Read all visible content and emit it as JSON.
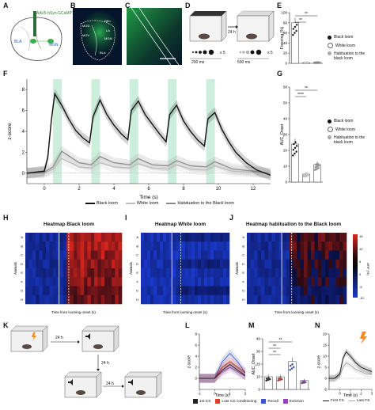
{
  "panels": {
    "A": {
      "letter": "A",
      "virus": "AAV5-hSyn-GCaMP7s",
      "region1": "BLA",
      "region2": "MGN"
    },
    "B": {
      "letter": "B",
      "labels": [
        "BLA",
        "DEn",
        "LA",
        "MGV",
        "MGD",
        "MGM"
      ]
    },
    "C": {
      "letter": "C"
    },
    "D": {
      "letter": "D",
      "interval": "24 h",
      "reps1": "x 5",
      "reps2": "x 5",
      "dist1": "200 ms",
      "dist2": "500 ms"
    },
    "E": {
      "letter": "E",
      "sig": "**"
    },
    "F": {
      "letter": "F"
    },
    "G": {
      "letter": "G",
      "sig1": "**",
      "sig2": "****"
    },
    "H": {
      "letter": "H",
      "title": "Heatmap Black loom"
    },
    "I": {
      "letter": "I",
      "title": "Heatmap White loom"
    },
    "J": {
      "letter": "J",
      "title": "Heatmap habituation to the Black loom"
    },
    "K": {
      "letter": "K",
      "interval1": "24 h",
      "interval2": "24 h",
      "interval3": "24 h"
    },
    "L": {
      "letter": "L"
    },
    "M": {
      "letter": "M",
      "sig": "**"
    },
    "N": {
      "letter": "N"
    }
  },
  "heatmaps": {
    "ylabel": "Animals",
    "xlabel": "Time from looming onset (s)",
    "rows": [
      "A",
      "B",
      "C",
      "D",
      "E",
      "F",
      "G",
      "H"
    ],
    "colorbar_label": "dF/F (%)",
    "colorbar_ticks": [
      "15",
      "10",
      "5",
      "0",
      "-5",
      "-10"
    ]
  },
  "legends": {
    "E": [
      "Black loom",
      "White loom",
      "Habituation to the black loom"
    ],
    "G": [
      "Black loom",
      "White loom",
      "Habituation to the black loom"
    ],
    "F": [
      "Black loom",
      "White loom",
      "Habituation to the Black loom"
    ],
    "L": [
      "1st CS",
      "Last CS conditioning",
      "Recall",
      "Extiction"
    ],
    "N": [
      "First FS",
      "Last FS"
    ]
  },
  "colors": {
    "black": "#111111",
    "white_loom": "#bdbdbd",
    "habituation": "#8a8a8a",
    "shade": "#cdeedd",
    "heat_high": "#e0261e",
    "heat_low": "#1a3cc9",
    "cs1": "#222222",
    "cs_last": "#e4392b",
    "recall": "#3a55d0",
    "extinction": "#9b3fc6",
    "fs_first": "#111111",
    "fs_last": "#a0a0a0",
    "lightning": "#f28c1a"
  },
  "chart_data": [
    {
      "type": "bar",
      "id": "E",
      "ylabel": "Freezing (%)",
      "categories": [
        "Black loom",
        "White loom",
        "Habituation to the black loom"
      ],
      "values": [
        80,
        1,
        2
      ],
      "ylim": [
        0,
        100
      ],
      "yticks": [
        0,
        20,
        40,
        60,
        80,
        100
      ],
      "significance": [
        "**",
        "**"
      ]
    },
    {
      "type": "line",
      "id": "F",
      "xlabel": "Time (s)",
      "ylabel": "z-score",
      "xlim": [
        -1,
        13
      ],
      "ylim": [
        -1,
        9
      ],
      "xticks": [
        0,
        2,
        4,
        6,
        8,
        10,
        12
      ],
      "yticks": [
        0,
        2,
        4,
        6,
        8
      ],
      "loom_onsets": [
        0.5,
        2.7,
        4.9,
        7.1,
        9.3
      ],
      "series": [
        {
          "name": "Black loom",
          "color": "#111111",
          "x": [
            -1,
            -0.5,
            0,
            0.2,
            0.4,
            0.6,
            1.0,
            1.4,
            1.8,
            2.2,
            2.6,
            2.8,
            3.2,
            3.6,
            4.0,
            4.4,
            4.8,
            5.0,
            5.4,
            5.8,
            6.2,
            6.6,
            7.0,
            7.2,
            7.6,
            8.0,
            8.4,
            8.8,
            9.2,
            9.4,
            9.8,
            10.2,
            10.6,
            11.0,
            11.6,
            12.2,
            13
          ],
          "y": [
            0,
            0.1,
            0.2,
            1.5,
            5.0,
            7.6,
            6.5,
            5.2,
            4.1,
            3.4,
            2.9,
            5.4,
            7.0,
            5.6,
            4.6,
            3.8,
            3.2,
            6.0,
            6.9,
            5.6,
            4.7,
            3.8,
            3.0,
            5.6,
            6.5,
            5.0,
            4.0,
            3.2,
            2.6,
            5.2,
            5.8,
            4.2,
            3.0,
            2.0,
            1.0,
            0.3,
            -0.2
          ]
        },
        {
          "name": "White loom",
          "color": "#bdbdbd",
          "x": [
            -1,
            0,
            0.5,
            1.0,
            2.0,
            2.7,
            3.2,
            4.0,
            4.9,
            5.4,
            6.2,
            7.1,
            7.6,
            8.4,
            9.3,
            9.8,
            10.8,
            12,
            13
          ],
          "y": [
            0,
            0,
            0.4,
            1.4,
            0.6,
            0.5,
            1.0,
            0.6,
            0.5,
            0.9,
            0.5,
            0.4,
            0.8,
            0.4,
            0.3,
            0.7,
            0.2,
            0.1,
            0
          ]
        },
        {
          "name": "Habituation to the Black loom",
          "color": "#8a8a8a",
          "x": [
            -1,
            0,
            0.5,
            1.0,
            2.0,
            2.7,
            3.2,
            4.0,
            4.9,
            5.4,
            6.2,
            7.1,
            7.6,
            8.4,
            9.3,
            9.8,
            10.8,
            12,
            13
          ],
          "y": [
            0,
            0.1,
            0.6,
            2.1,
            1.0,
            0.8,
            1.6,
            1.0,
            0.8,
            1.4,
            0.8,
            0.7,
            1.2,
            0.7,
            0.6,
            1.1,
            0.4,
            0.2,
            0
          ]
        }
      ]
    },
    {
      "type": "bar",
      "id": "G",
      "ylabel": "AUC_Onset",
      "categories": [
        "Black loom",
        "White loom",
        "Habituation to the black loom"
      ],
      "values": [
        24,
        5,
        11
      ],
      "ylim": [
        0,
        60
      ],
      "yticks": [
        0,
        10,
        20,
        30,
        40,
        50,
        60
      ],
      "significance": [
        "**",
        "****"
      ]
    },
    {
      "type": "line",
      "id": "L",
      "xlabel": "Time (s)",
      "ylabel": "z-score",
      "xlim": [
        -1,
        2
      ],
      "ylim": [
        -2,
        8
      ],
      "xticks": [
        -1,
        0,
        1,
        2
      ],
      "yticks": [
        0,
        2,
        4,
        6,
        8
      ],
      "series": [
        {
          "name": "1st CS",
          "color": "#222222",
          "x": [
            -1,
            0,
            0.5,
            1.0,
            1.5,
            2
          ],
          "y": [
            0,
            0,
            1.5,
            2.5,
            1.5,
            0.5
          ]
        },
        {
          "name": "Last CS conditioning",
          "color": "#e4392b",
          "x": [
            -1,
            0,
            0.5,
            1.0,
            1.5,
            2
          ],
          "y": [
            0,
            0,
            2,
            3,
            2,
            1
          ]
        },
        {
          "name": "Recall",
          "color": "#3a55d0",
          "x": [
            -1,
            0,
            0.5,
            1.0,
            1.5,
            2
          ],
          "y": [
            0,
            0,
            3,
            4.5,
            3,
            1
          ]
        },
        {
          "name": "Extiction",
          "color": "#9b3fc6",
          "x": [
            -1,
            0,
            0.5,
            1.0,
            1.5,
            2
          ],
          "y": [
            0,
            0,
            1.2,
            2,
            1.2,
            0.4
          ]
        }
      ]
    },
    {
      "type": "bar",
      "id": "M",
      "ylabel": "AUC_Onset",
      "categories": [
        "1st CS",
        "Last CS conditioning",
        "Recall",
        "Extiction"
      ],
      "values": [
        10,
        10,
        22,
        7
      ],
      "ylim": [
        0,
        40
      ],
      "yticks": [
        0,
        10,
        20,
        30,
        40
      ],
      "significance": [
        "**",
        "**",
        "**"
      ]
    },
    {
      "type": "line",
      "id": "N",
      "xlabel": "Time (s)",
      "ylabel": "z-score",
      "xlim": [
        -1,
        3
      ],
      "ylim": [
        -5,
        20
      ],
      "xticks": [
        0,
        1,
        2,
        3
      ],
      "yticks": [
        -5,
        0,
        5,
        10,
        15,
        20
      ],
      "series": [
        {
          "name": "First FS",
          "color": "#111111",
          "x": [
            -1,
            -0.5,
            0,
            0.3,
            0.6,
            1.0,
            1.5,
            2.0,
            2.5,
            3
          ],
          "y": [
            0,
            0,
            2,
            9,
            12,
            10,
            7,
            5,
            4,
            3
          ]
        },
        {
          "name": "Last FS",
          "color": "#a0a0a0",
          "x": [
            -1,
            -0.5,
            0,
            0.3,
            0.6,
            1.0,
            1.5,
            2.0,
            2.5,
            3
          ],
          "y": [
            0,
            0,
            1,
            5,
            7,
            6,
            4,
            3,
            2,
            2
          ]
        }
      ]
    }
  ]
}
